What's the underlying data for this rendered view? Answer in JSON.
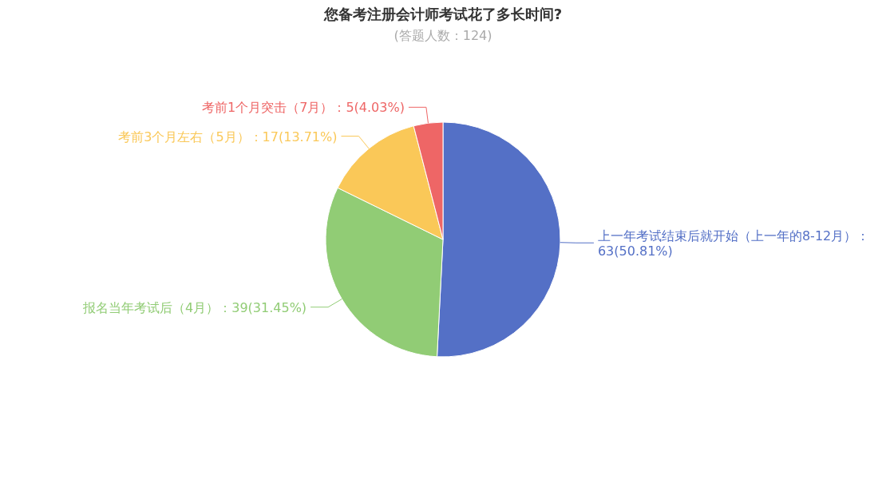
{
  "chart_data": {
    "type": "pie",
    "title": "您备考注册会计师考试花了多长时间?",
    "subtitle": "(答题人数：124)",
    "categories": [
      "上一年考试结束后就开始（上一年的8-12月）",
      "报名当年考试后（4月）",
      "考前3个月左右（5月）",
      "考前1个月突击（7月）"
    ],
    "values": [
      63,
      39,
      17,
      5
    ],
    "value_labels": [
      "：63(50.81%)",
      "：39(31.45%)",
      "：17(13.71%)",
      "：5(4.03%)"
    ],
    "colors": [
      "#5470c6",
      "#91cc75",
      "#fac858",
      "#ee6666"
    ]
  }
}
